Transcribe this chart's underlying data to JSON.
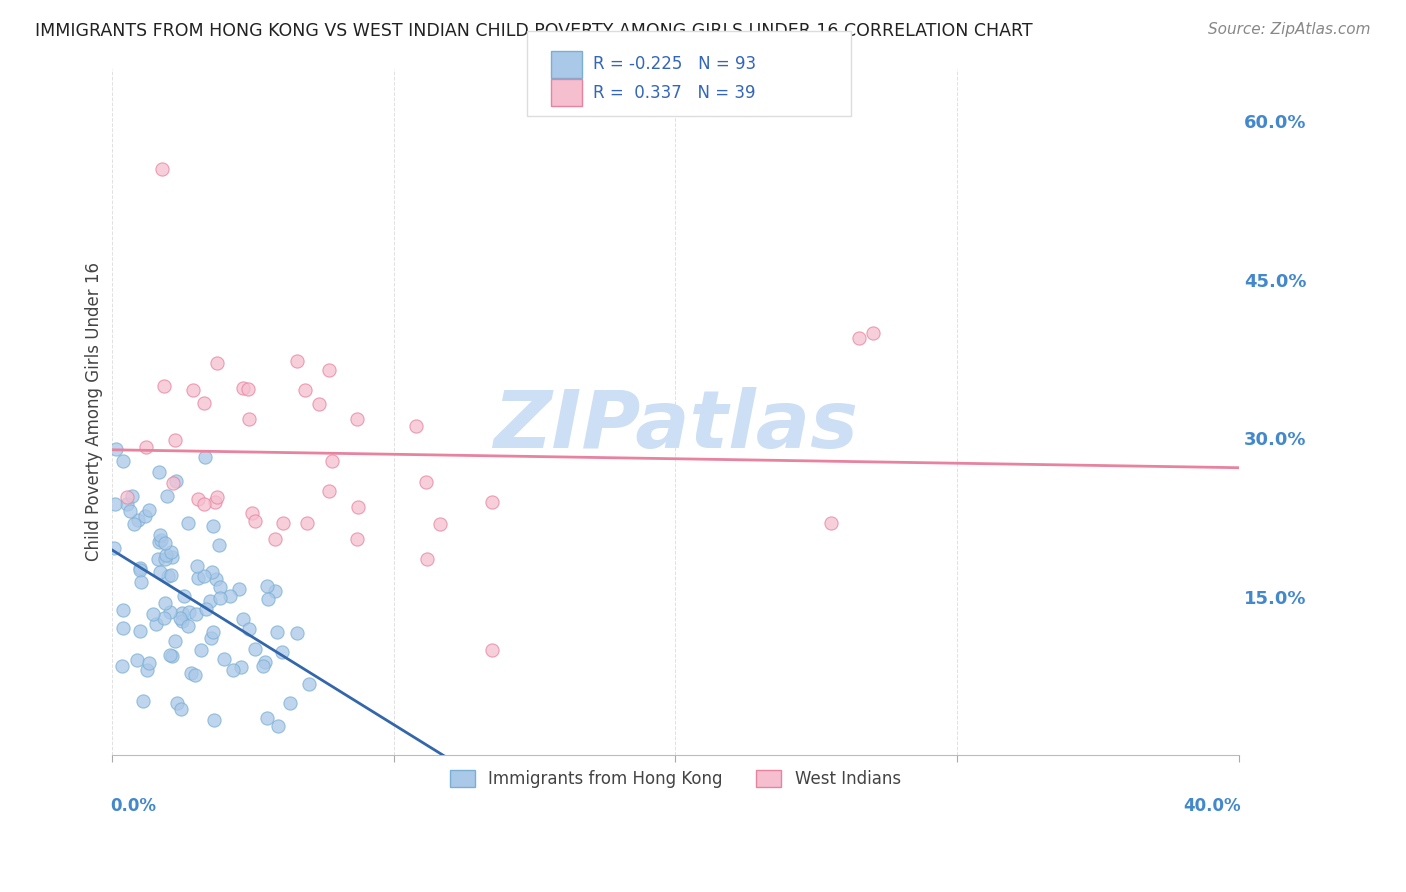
{
  "title": "IMMIGRANTS FROM HONG KONG VS WEST INDIAN CHILD POVERTY AMONG GIRLS UNDER 16 CORRELATION CHART",
  "source": "Source: ZipAtlas.com",
  "ylabel": "Child Poverty Among Girls Under 16",
  "y_ticks_right": [
    0.0,
    0.15,
    0.3,
    0.45,
    0.6
  ],
  "y_tick_labels_right": [
    "",
    "15.0%",
    "30.0%",
    "45.0%",
    "60.0%"
  ],
  "x_lim": [
    0.0,
    0.4
  ],
  "y_lim": [
    0.0,
    0.65
  ],
  "series1_color": "#aac8e8",
  "series1_edge": "#7aafd4",
  "series2_color": "#f5bfd0",
  "series2_edge": "#e8829f",
  "trend1_solid_color": "#3366aa",
  "trend1_dash_color": "#99bbdd",
  "trend2_color": "#e8829f",
  "watermark": "ZIPatlas",
  "watermark_color": "#cddff5",
  "legend_box_color": "#dddddd",
  "legend_text_color": "#3366bb",
  "bottom_label_color": "#4488cc",
  "ylabel_color": "#444444",
  "title_color": "#222222",
  "source_color": "#888888",
  "grid_color": "#cccccc"
}
